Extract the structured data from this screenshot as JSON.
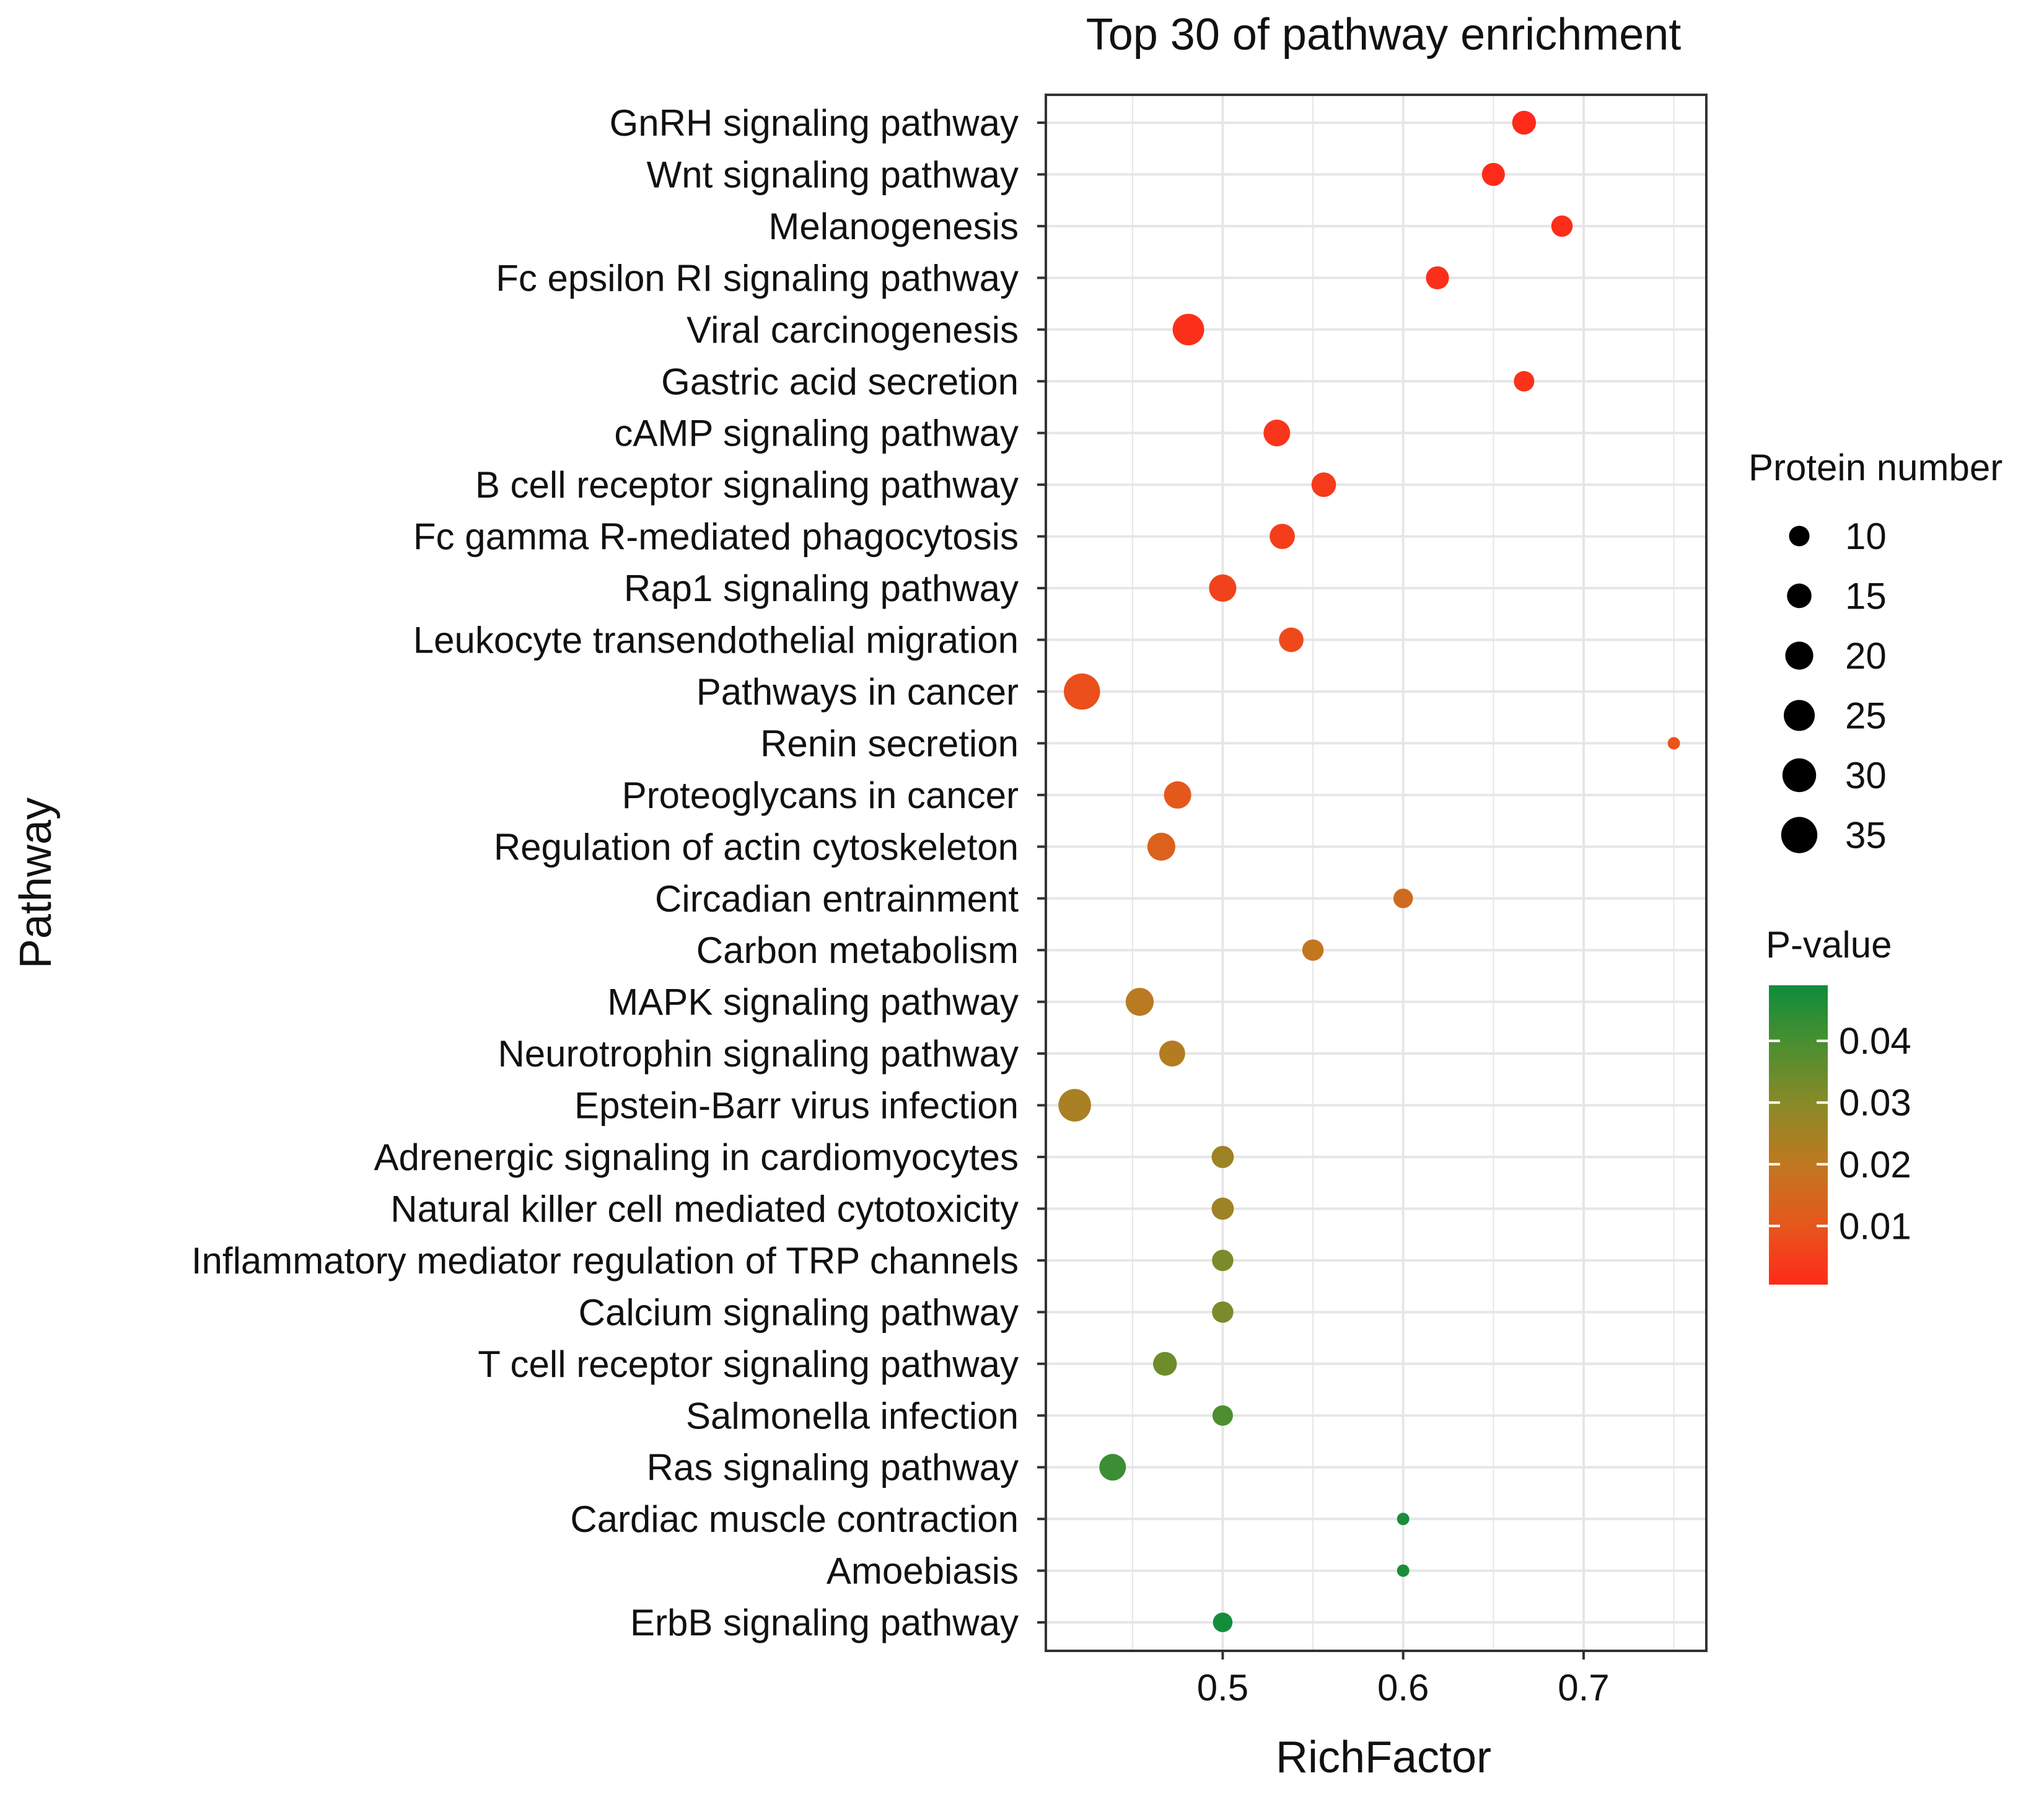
{
  "chart_data": {
    "type": "scatter",
    "title": "Top 30 of pathway enrichment",
    "xlabel": "RichFactor",
    "ylabel": "Pathway",
    "xlim": [
      0.402,
      0.768
    ],
    "x_ticks": [
      0.5,
      0.6,
      0.7
    ],
    "x_tick_labels": [
      "0.5",
      "0.6",
      "0.7"
    ],
    "grid": true,
    "points": [
      {
        "pathway": "GnRH signaling pathway",
        "rich_factor": 0.667,
        "protein_number": 14,
        "p_value": 0.0005
      },
      {
        "pathway": "Wnt signaling pathway",
        "rich_factor": 0.65,
        "protein_number": 13,
        "p_value": 0.0008
      },
      {
        "pathway": "Melanogenesis",
        "rich_factor": 0.688,
        "protein_number": 11,
        "p_value": 0.0012
      },
      {
        "pathway": "Fc epsilon RI signaling pathway",
        "rich_factor": 0.619,
        "protein_number": 13,
        "p_value": 0.0015
      },
      {
        "pathway": "Viral carcinogenesis",
        "rich_factor": 0.481,
        "protein_number": 26,
        "p_value": 0.0018
      },
      {
        "pathway": "Gastric acid secretion",
        "rich_factor": 0.667,
        "protein_number": 10,
        "p_value": 0.0022
      },
      {
        "pathway": "cAMP signaling pathway",
        "rich_factor": 0.53,
        "protein_number": 18,
        "p_value": 0.003
      },
      {
        "pathway": "B cell receptor signaling pathway",
        "rich_factor": 0.556,
        "protein_number": 15,
        "p_value": 0.004
      },
      {
        "pathway": "Fc gamma R-mediated phagocytosis",
        "rich_factor": 0.533,
        "protein_number": 16,
        "p_value": 0.0048
      },
      {
        "pathway": "Rap1 signaling pathway",
        "rich_factor": 0.5,
        "protein_number": 19,
        "p_value": 0.0058
      },
      {
        "pathway": "Leukocyte transendothelial migration",
        "rich_factor": 0.538,
        "protein_number": 15,
        "p_value": 0.0072
      },
      {
        "pathway": "Pathways in cancer",
        "rich_factor": 0.422,
        "protein_number": 35,
        "p_value": 0.0085
      },
      {
        "pathway": "Renin secretion",
        "rich_factor": 0.75,
        "protein_number": 3,
        "p_value": 0.0095
      },
      {
        "pathway": "Proteoglycans in cancer",
        "rich_factor": 0.475,
        "protein_number": 19,
        "p_value": 0.0105
      },
      {
        "pathway": "Regulation of actin cytoskeleton",
        "rich_factor": 0.466,
        "protein_number": 20,
        "p_value": 0.013
      },
      {
        "pathway": "Circadian entrainment",
        "rich_factor": 0.6,
        "protein_number": 9,
        "p_value": 0.016
      },
      {
        "pathway": "Carbon metabolism",
        "rich_factor": 0.55,
        "protein_number": 11,
        "p_value": 0.019
      },
      {
        "pathway": "MAPK signaling pathway",
        "rich_factor": 0.454,
        "protein_number": 20,
        "p_value": 0.021
      },
      {
        "pathway": "Neurotrophin signaling pathway",
        "rich_factor": 0.472,
        "protein_number": 17,
        "p_value": 0.022
      },
      {
        "pathway": "Epstein-Barr virus infection",
        "rich_factor": 0.418,
        "protein_number": 28,
        "p_value": 0.024
      },
      {
        "pathway": "Adrenergic signaling in cardiomyocytes",
        "rich_factor": 0.5,
        "protein_number": 12,
        "p_value": 0.026
      },
      {
        "pathway": "Natural killer cell mediated cytotoxicity",
        "rich_factor": 0.5,
        "protein_number": 12,
        "p_value": 0.026
      },
      {
        "pathway": "Inflammatory mediator regulation of TRP channels",
        "rich_factor": 0.5,
        "protein_number": 11,
        "p_value": 0.032
      },
      {
        "pathway": "Calcium signaling pathway",
        "rich_factor": 0.5,
        "protein_number": 11,
        "p_value": 0.032
      },
      {
        "pathway": "T cell receptor signaling pathway",
        "rich_factor": 0.468,
        "protein_number": 14,
        "p_value": 0.034
      },
      {
        "pathway": "Salmonella infection",
        "rich_factor": 0.5,
        "protein_number": 10,
        "p_value": 0.039
      },
      {
        "pathway": "Ras signaling pathway",
        "rich_factor": 0.439,
        "protein_number": 18,
        "p_value": 0.042
      },
      {
        "pathway": "Cardiac muscle contraction",
        "rich_factor": 0.6,
        "protein_number": 3,
        "p_value": 0.047
      },
      {
        "pathway": "Amoebiasis",
        "rich_factor": 0.6,
        "protein_number": 3,
        "p_value": 0.047
      },
      {
        "pathway": "ErbB signaling pathway",
        "rich_factor": 0.5,
        "protein_number": 9,
        "p_value": 0.048
      }
    ],
    "size_legend": {
      "title": "Protein number",
      "values": [
        10,
        15,
        20,
        25,
        30,
        35
      ],
      "labels": [
        "10",
        "15",
        "20",
        "25",
        "30",
        "35"
      ]
    },
    "color_legend": {
      "title": "P-value",
      "range": [
        0.0005,
        0.049
      ],
      "ticks": [
        0.01,
        0.02,
        0.03,
        0.04
      ],
      "labels": [
        "0.01",
        "0.02",
        "0.03",
        "0.04"
      ],
      "colors": [
        "#ff2a1a",
        "#e6571c",
        "#c07820",
        "#8a8a28",
        "#4d8e30",
        "#0d8d3c"
      ]
    },
    "panel_border_color": "#333333",
    "grid_color": "#e6e6e6"
  }
}
